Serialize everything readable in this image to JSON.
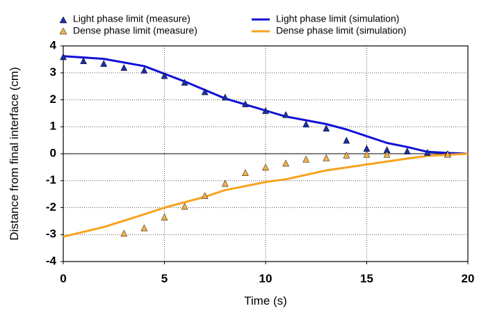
{
  "chart_data": {
    "type": "line",
    "xlabel": "Time (s)",
    "ylabel": "Distance from final interface (cm)",
    "xlim": [
      0,
      20
    ],
    "ylim": [
      -4,
      4
    ],
    "xticks": [
      0,
      5,
      10,
      15,
      20
    ],
    "yticks": [
      4,
      3,
      2,
      1,
      0,
      -1,
      -2,
      -3,
      -4
    ],
    "grid": true,
    "legend_position": "top",
    "series": [
      {
        "name": "Light phase limit (measure)",
        "kind": "scatter",
        "marker": "triangle",
        "color": "#1a2fa8",
        "x": [
          0,
          1,
          2,
          3,
          4,
          5,
          6,
          7,
          8,
          9,
          10,
          11,
          12,
          13,
          14,
          15,
          16,
          17,
          18,
          19
        ],
        "y": [
          3.6,
          3.45,
          3.35,
          3.2,
          3.1,
          2.9,
          2.65,
          2.3,
          2.1,
          1.85,
          1.6,
          1.45,
          1.1,
          0.95,
          0.5,
          0.2,
          0.15,
          0.1,
          0.05,
          0.0
        ]
      },
      {
        "name": "Dense phase limit (measure)",
        "kind": "scatter",
        "marker": "triangle",
        "color": "#f2b04a",
        "x": [
          3,
          4,
          5,
          6,
          7,
          8,
          9,
          10,
          11,
          12,
          13,
          14,
          15,
          16,
          19
        ],
        "y": [
          -2.95,
          -2.75,
          -2.35,
          -1.95,
          -1.55,
          -1.1,
          -0.7,
          -0.5,
          -0.35,
          -0.2,
          -0.15,
          -0.05,
          -0.02,
          -0.02,
          -0.02
        ]
      },
      {
        "name": "Light phase limit (simulation)",
        "kind": "line",
        "color": "#1010d8",
        "x": [
          0,
          2,
          4,
          6,
          8,
          10,
          11,
          13,
          14,
          15,
          16,
          17,
          18,
          19,
          20
        ],
        "y": [
          3.62,
          3.52,
          3.25,
          2.68,
          2.05,
          1.6,
          1.38,
          1.1,
          0.9,
          0.65,
          0.4,
          0.25,
          0.07,
          0.03,
          0.0
        ]
      },
      {
        "name": "Dense phase limit (simulation)",
        "kind": "line",
        "color": "#f7a21d",
        "x": [
          0,
          2,
          4,
          5,
          7,
          8,
          10,
          11,
          13,
          15,
          17,
          18,
          19,
          20
        ],
        "y": [
          -3.08,
          -2.72,
          -2.25,
          -2.0,
          -1.6,
          -1.35,
          -1.05,
          -0.95,
          -0.62,
          -0.4,
          -0.18,
          -0.08,
          -0.04,
          0.0
        ]
      }
    ]
  }
}
